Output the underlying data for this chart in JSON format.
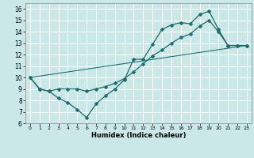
{
  "xlabel": "Humidex (Indice chaleur)",
  "bg_color": "#cbe8e8",
  "grid_color": "#ffffff",
  "line_color": "#1a6b6b",
  "markersize": 2.5,
  "linewidth": 0.9,
  "xlim": [
    -0.5,
    23.5
  ],
  "ylim": [
    6,
    16.5
  ],
  "xticks": [
    0,
    1,
    2,
    3,
    4,
    5,
    6,
    7,
    8,
    9,
    10,
    11,
    12,
    13,
    14,
    15,
    16,
    17,
    18,
    19,
    20,
    21,
    22,
    23
  ],
  "yticks": [
    6,
    7,
    8,
    9,
    10,
    11,
    12,
    13,
    14,
    15,
    16
  ],
  "line1_x": [
    0,
    1,
    2,
    3,
    4,
    5,
    6,
    7,
    8,
    9,
    10,
    11,
    12,
    13,
    14,
    15,
    16,
    17,
    18,
    19,
    20,
    21,
    22,
    23
  ],
  "line1_y": [
    10.0,
    9.0,
    8.8,
    8.2,
    7.8,
    7.2,
    6.5,
    7.7,
    8.4,
    9.0,
    9.8,
    11.6,
    11.6,
    12.9,
    14.2,
    14.6,
    14.8,
    14.7,
    15.5,
    15.8,
    14.2,
    12.8,
    12.8,
    12.8
  ],
  "line2_x": [
    0,
    1,
    2,
    3,
    4,
    5,
    6,
    7,
    8,
    9,
    10,
    11,
    12,
    13,
    14,
    15,
    16,
    17,
    18,
    19,
    20,
    21,
    22,
    23
  ],
  "line2_y": [
    10.0,
    9.0,
    8.8,
    9.0,
    9.0,
    9.0,
    8.8,
    9.0,
    9.2,
    9.5,
    9.9,
    10.5,
    11.2,
    11.9,
    12.4,
    13.0,
    13.5,
    13.8,
    14.5,
    15.0,
    14.0,
    12.8,
    12.8,
    12.8
  ],
  "line3_x": [
    0,
    23
  ],
  "line3_y": [
    10.0,
    12.8
  ]
}
